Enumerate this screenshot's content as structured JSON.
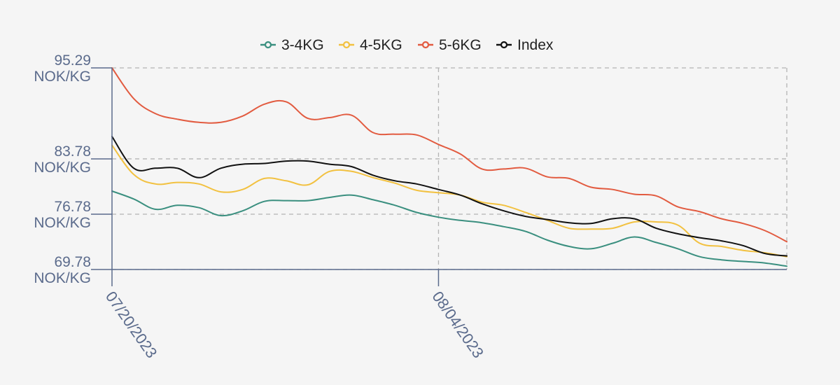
{
  "chart_data": {
    "type": "line",
    "legend_position": "top-center",
    "grid": true,
    "x_labels": [
      "07/20/2023",
      "08/04/2023"
    ],
    "x": [
      "07/20/2023",
      "07/21/2023",
      "07/22/2023",
      "07/23/2023",
      "07/24/2023",
      "07/25/2023",
      "07/26/2023",
      "07/27/2023",
      "07/28/2023",
      "07/29/2023",
      "07/30/2023",
      "07/31/2023",
      "08/01/2023",
      "08/02/2023",
      "08/03/2023",
      "08/04/2023",
      "08/05/2023",
      "08/06/2023",
      "08/07/2023",
      "08/08/2023",
      "08/09/2023",
      "08/10/2023",
      "08/11/2023",
      "08/12/2023",
      "08/13/2023",
      "08/14/2023",
      "08/15/2023",
      "08/16/2023",
      "08/17/2023",
      "08/18/2023",
      "08/19/2023",
      "08/20/2023"
    ],
    "ylim": [
      69.78,
      95.29
    ],
    "y_ticks": [
      {
        "value": 69.78,
        "line1": "69.78",
        "line2": "NOK/KG"
      },
      {
        "value": 76.78,
        "line1": "76.78",
        "line2": "NOK/KG"
      },
      {
        "value": 83.78,
        "line1": "83.78",
        "line2": "NOK/KG"
      },
      {
        "value": 95.29,
        "line1": "95.29",
        "line2": "NOK/KG"
      }
    ],
    "series": [
      {
        "name": "3-4KG",
        "color": "#3a8f7f",
        "values": [
          79.7,
          78.7,
          77.4,
          77.9,
          77.6,
          76.6,
          77.2,
          78.4,
          78.5,
          78.5,
          78.9,
          79.2,
          78.6,
          77.9,
          77.0,
          76.4,
          76.0,
          75.7,
          75.2,
          74.6,
          73.5,
          72.7,
          72.4,
          73.1,
          73.9,
          73.2,
          72.4,
          71.4,
          71.0,
          70.8,
          70.6,
          70.2
        ]
      },
      {
        "name": "4-5KG",
        "color": "#f2c140",
        "values": [
          85.5,
          81.8,
          80.6,
          80.8,
          80.6,
          79.6,
          79.9,
          81.3,
          81.0,
          80.5,
          82.2,
          82.2,
          81.4,
          80.7,
          79.8,
          79.5,
          79.2,
          78.3,
          77.9,
          77.0,
          76.0,
          75.0,
          74.9,
          75.0,
          75.8,
          75.8,
          75.4,
          73.1,
          72.7,
          72.2,
          71.9,
          71.4
        ]
      },
      {
        "name": "5-6KG",
        "color": "#e25b40",
        "values": [
          95.29,
          91.4,
          89.5,
          88.8,
          88.4,
          88.4,
          89.2,
          90.7,
          91.0,
          88.9,
          89.0,
          89.3,
          87.1,
          86.9,
          86.8,
          85.6,
          84.4,
          82.5,
          82.5,
          82.6,
          81.5,
          81.3,
          80.2,
          79.9,
          79.3,
          79.1,
          77.7,
          77.1,
          76.2,
          75.6,
          74.7,
          73.3
        ]
      },
      {
        "name": "Index",
        "color": "#111111",
        "values": [
          86.6,
          82.6,
          82.6,
          82.6,
          81.4,
          82.6,
          83.1,
          83.2,
          83.5,
          83.5,
          83.1,
          82.8,
          81.7,
          81.0,
          80.6,
          79.9,
          79.2,
          78.1,
          77.2,
          76.5,
          76.1,
          75.7,
          75.6,
          76.2,
          76.2,
          75.0,
          74.3,
          73.8,
          73.4,
          72.8,
          71.8,
          71.5
        ]
      }
    ]
  }
}
